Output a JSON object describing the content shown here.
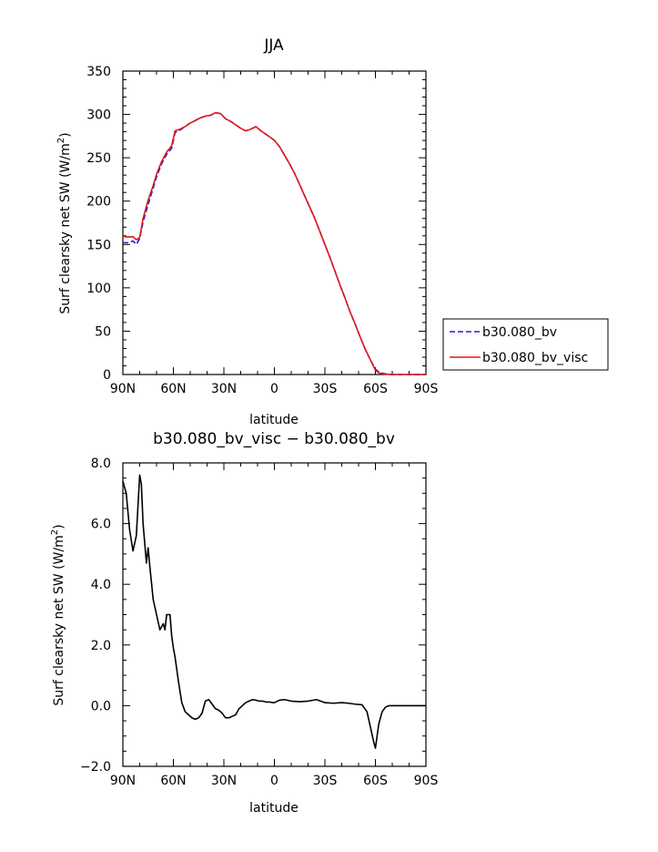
{
  "chart_data": [
    {
      "type": "line",
      "title": "JJA",
      "xlabel": "latitude",
      "ylabel": "Surf clearsky net SW (W/m²)",
      "ylabel_main": "Surf clearsky net SW (W/m",
      "ylabel_sup": "2",
      "ylabel_close": ")",
      "xlim": [
        90,
        -90
      ],
      "ylim": [
        0,
        350
      ],
      "xticks": [
        90,
        60,
        30,
        0,
        -30,
        -60,
        -90
      ],
      "xtick_labels": [
        "90N",
        "60N",
        "30N",
        "0",
        "30S",
        "60S",
        "90S"
      ],
      "yticks": [
        0,
        50,
        100,
        150,
        200,
        250,
        300,
        350
      ],
      "ytick_labels": [
        "0",
        "50",
        "100",
        "150",
        "200",
        "250",
        "300",
        "350"
      ],
      "legend_position": "outside-right",
      "series": [
        {
          "name": "b30.080_bv",
          "color": "#1f1fd6",
          "style": "dashed",
          "x": [
            90,
            87,
            84,
            82,
            80,
            78,
            75,
            72,
            70,
            67,
            64,
            61,
            59,
            56,
            53,
            50,
            47,
            44,
            41,
            38,
            35,
            32,
            29,
            26,
            23,
            20,
            17,
            14,
            11,
            8,
            5,
            2,
            0,
            -3,
            -6,
            -9,
            -12,
            -15,
            -18,
            -21,
            -24,
            -27,
            -30,
            -33,
            -36,
            -39,
            -42,
            -45,
            -48,
            -51,
            -54,
            -57,
            -60,
            -62,
            -64,
            -66,
            -68,
            -70,
            -72,
            -75,
            -78,
            -81,
            -84,
            -87,
            -90
          ],
          "y": [
            152,
            152,
            154,
            150,
            157,
            176,
            196,
            215,
            228,
            243,
            254,
            261,
            279,
            282,
            286,
            290,
            293,
            296,
            298,
            299,
            302,
            301,
            295,
            292,
            288,
            284,
            281,
            283,
            286,
            281,
            277,
            273,
            270,
            263,
            253,
            243,
            232,
            219,
            206,
            193,
            180,
            165,
            150,
            135,
            119,
            103,
            88,
            72,
            58,
            43,
            29,
            17,
            6,
            3,
            1.5,
            0.7,
            0.3,
            0,
            0,
            0,
            0,
            0,
            0,
            0,
            0
          ]
        },
        {
          "name": "b30.080_bv_visc",
          "color": "#e01818",
          "style": "solid",
          "x": [
            90,
            87,
            84,
            82,
            80,
            78,
            75,
            72,
            70,
            67,
            64,
            61,
            59,
            56,
            53,
            50,
            47,
            44,
            41,
            38,
            35,
            32,
            29,
            26,
            23,
            20,
            17,
            14,
            11,
            8,
            5,
            2,
            0,
            -3,
            -6,
            -9,
            -12,
            -15,
            -18,
            -21,
            -24,
            -27,
            -30,
            -33,
            -36,
            -39,
            -42,
            -45,
            -48,
            -51,
            -54,
            -57,
            -60,
            -62,
            -64,
            -66,
            -68,
            -70,
            -72,
            -75,
            -78,
            -81,
            -84,
            -87,
            -90
          ],
          "y": [
            159.5,
            158.5,
            159,
            155.5,
            158,
            180,
            201,
            218,
            231,
            245.5,
            256.5,
            264,
            281,
            283,
            286,
            290,
            293,
            296,
            298,
            299,
            302,
            301,
            295,
            292,
            288,
            284,
            281,
            283,
            286,
            281,
            277,
            273,
            270,
            263,
            253,
            243,
            232,
            219,
            206,
            193,
            180,
            165,
            150,
            135,
            119,
            103,
            88,
            72,
            58,
            43,
            29,
            17,
            5,
            2,
            1,
            0.5,
            0.2,
            0,
            0,
            0,
            0,
            0,
            0,
            0,
            0
          ]
        }
      ]
    },
    {
      "type": "line",
      "title": "b30.080_bv_visc − b30.080_bv",
      "xlabel": "latitude",
      "ylabel": "Surf clearsky net SW (W/m²)",
      "ylabel_main": "Surf clearsky net SW (W/m",
      "ylabel_sup": "2",
      "ylabel_close": ")",
      "xlim": [
        90,
        -90
      ],
      "ylim": [
        -2,
        8
      ],
      "xticks": [
        90,
        60,
        30,
        0,
        -30,
        -60,
        -90
      ],
      "xtick_labels": [
        "90N",
        "60N",
        "30N",
        "0",
        "30S",
        "60S",
        "90S"
      ],
      "yticks": [
        -2,
        0,
        2,
        4,
        6,
        8
      ],
      "ytick_labels": [
        "−2.0",
        "0.0",
        "2.0",
        "4.0",
        "6.0",
        "8.0"
      ],
      "series": [
        {
          "color": "#000000",
          "style": "solid",
          "x": [
            90,
            88,
            86,
            84,
            82,
            80,
            79,
            78,
            76,
            75,
            74,
            72,
            70,
            68,
            66,
            65,
            64,
            62,
            61,
            60,
            59,
            57,
            55,
            53,
            51,
            49,
            47,
            45,
            43,
            41,
            39,
            37,
            35,
            33,
            31,
            29,
            27,
            25,
            23,
            21,
            19,
            17,
            15,
            13,
            11,
            9,
            7,
            5,
            3,
            1,
            0,
            -3,
            -6,
            -10,
            -15,
            -20,
            -25,
            -30,
            -35,
            -40,
            -44,
            -48,
            -52,
            -55,
            -57,
            -59,
            -60,
            -61,
            -62,
            -64,
            -66,
            -68,
            -70,
            -75,
            -80,
            -85,
            -90
          ],
          "y": [
            7.4,
            7.0,
            5.8,
            5.1,
            5.6,
            7.6,
            7.3,
            6.0,
            4.7,
            5.2,
            4.6,
            3.5,
            3.0,
            2.5,
            2.7,
            2.5,
            3.0,
            3.0,
            2.3,
            1.9,
            1.6,
            0.8,
            0.1,
            -0.2,
            -0.3,
            -0.4,
            -0.45,
            -0.4,
            -0.25,
            0.15,
            0.2,
            0.05,
            -0.1,
            -0.15,
            -0.25,
            -0.4,
            -0.4,
            -0.35,
            -0.3,
            -0.1,
            0.0,
            0.1,
            0.15,
            0.2,
            0.18,
            0.15,
            0.15,
            0.12,
            0.12,
            0.1,
            0.1,
            0.18,
            0.2,
            0.15,
            0.13,
            0.15,
            0.2,
            0.1,
            0.08,
            0.1,
            0.08,
            0.05,
            0.03,
            -0.2,
            -0.7,
            -1.2,
            -1.4,
            -1.0,
            -0.6,
            -0.2,
            -0.05,
            0.0,
            0.0,
            0.0,
            0.0,
            0.0,
            0.0
          ]
        }
      ]
    }
  ]
}
